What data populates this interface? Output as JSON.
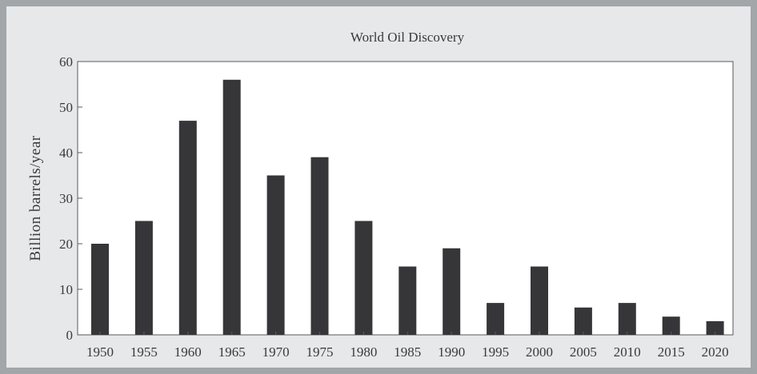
{
  "chart_data": {
    "type": "bar",
    "title": "World Oil Discovery",
    "xlabel": "",
    "ylabel": "Billion barrels/year",
    "categories": [
      "1950",
      "1955",
      "1960",
      "1965",
      "1970",
      "1975",
      "1980",
      "1985",
      "1990",
      "1995",
      "2000",
      "2005",
      "2010",
      "2015",
      "2020"
    ],
    "values": [
      20,
      25,
      47,
      56,
      35,
      39,
      25,
      15,
      19,
      7,
      15,
      6,
      7,
      4,
      3
    ],
    "ylim": [
      0,
      60
    ],
    "yticks": [
      0,
      10,
      20,
      30,
      40,
      50,
      60
    ],
    "grid": false,
    "bar_color": "#363638",
    "plot_bg": "#ffffff",
    "axis_color": "#5a5a5a"
  }
}
